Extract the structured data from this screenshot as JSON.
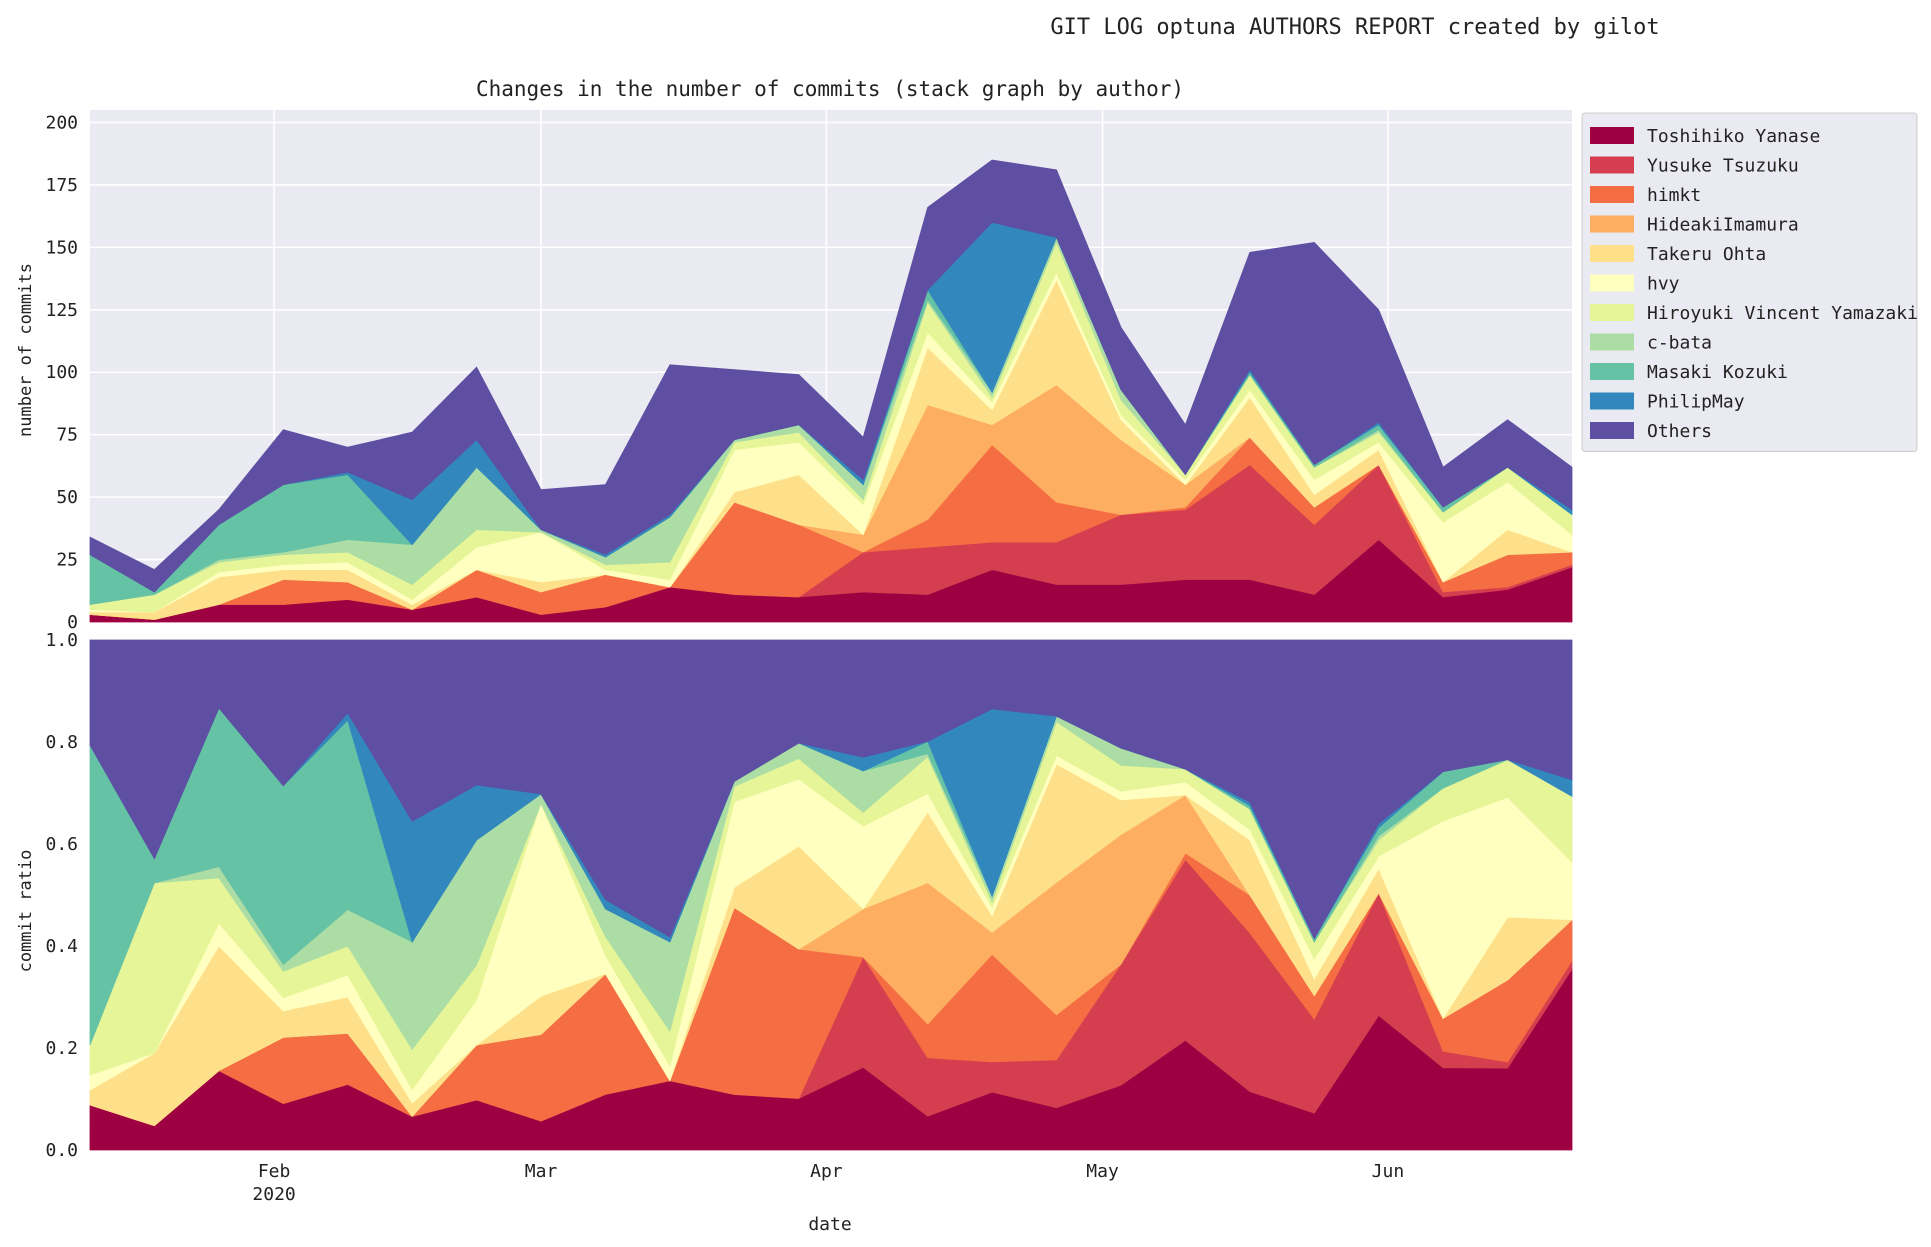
{
  "report_title": "GIT LOG optuna AUTHORS REPORT created by gilot",
  "chart_data": [
    {
      "type": "area",
      "stacked": true,
      "title": "Changes in the number of commits (stack graph by author)",
      "xlabel": "",
      "ylabel": "number of commits",
      "ylim": [
        0,
        205
      ],
      "yticks": [
        0,
        25,
        50,
        75,
        100,
        125,
        150,
        175,
        200
      ],
      "grid": true,
      "legend_position": "outside-right",
      "x": [
        "2020-01-12",
        "2020-01-19",
        "2020-01-26",
        "2020-02-02",
        "2020-02-09",
        "2020-02-16",
        "2020-02-23",
        "2020-03-01",
        "2020-03-08",
        "2020-03-15",
        "2020-03-22",
        "2020-03-29",
        "2020-04-05",
        "2020-04-12",
        "2020-04-19",
        "2020-04-26",
        "2020-05-03",
        "2020-05-10",
        "2020-05-17",
        "2020-05-24",
        "2020-05-31",
        "2020-06-07",
        "2020-06-14",
        "2020-06-21"
      ],
      "series": [
        {
          "name": "Toshihiko Yanase",
          "color": "#9e0142",
          "values": [
            3,
            1,
            7,
            7,
            9,
            5,
            10,
            3,
            6,
            14,
            11,
            10,
            12,
            11,
            21,
            15,
            15,
            17,
            17,
            11,
            33,
            10,
            13,
            22
          ]
        },
        {
          "name": "Yusuke Tsuzuku",
          "color": "#d53e4f",
          "values": [
            0,
            0,
            0,
            0,
            0,
            0,
            0,
            0,
            0,
            0,
            0,
            0,
            16,
            19,
            11,
            17,
            28,
            28,
            46,
            28,
            30,
            2,
            1,
            1
          ]
        },
        {
          "name": "himkt",
          "color": "#f46d43",
          "values": [
            0,
            0,
            0,
            10,
            7,
            0,
            11,
            9,
            13,
            0,
            37,
            29,
            0,
            11,
            39,
            16,
            0,
            1,
            11,
            7,
            0,
            4,
            13,
            5
          ]
        },
        {
          "name": "HideakiImamura",
          "color": "#fdae61",
          "values": [
            0,
            0,
            0,
            0,
            0,
            0,
            0,
            0,
            0,
            0,
            0,
            0,
            7,
            46,
            8,
            47,
            30,
            9,
            0,
            0,
            0,
            0,
            0,
            0
          ]
        },
        {
          "name": "Takeru Ohta",
          "color": "#fee08b",
          "values": [
            1,
            3,
            11,
            4,
            5,
            2,
            0,
            4,
            0,
            0,
            4,
            20,
            0,
            23,
            6,
            42,
            8,
            0,
            16,
            5,
            6,
            0,
            10,
            0
          ]
        },
        {
          "name": "hvy",
          "color": "#ffffbf",
          "values": [
            1,
            0,
            2,
            2,
            3,
            2,
            9,
            20,
            2,
            3,
            17,
            13,
            12,
            6,
            3,
            3,
            2,
            2,
            3,
            6,
            3,
            24,
            19,
            7
          ]
        },
        {
          "name": "Hiroyuki Vincent Yamazaki",
          "color": "#e6f598",
          "values": [
            2,
            7,
            4,
            4,
            4,
            6,
            7,
            0,
            2,
            7,
            3,
            4,
            2,
            12,
            2,
            12,
            6,
            2,
            6,
            5,
            4,
            4,
            6,
            8
          ]
        },
        {
          "name": "c-bata",
          "color": "#abdda4",
          "values": [
            0,
            0,
            1,
            1,
            5,
            16,
            25,
            1,
            3,
            18,
            1,
            3,
            6,
            1,
            2,
            2,
            4,
            0,
            0,
            0,
            1,
            0,
            0,
            0
          ]
        },
        {
          "name": "Masaki Kozuki",
          "color": "#66c2a5",
          "values": [
            20,
            1,
            14,
            27,
            26,
            0,
            0,
            0,
            0,
            0,
            0,
            0,
            0,
            4,
            0,
            0,
            0,
            0,
            1,
            1,
            2,
            2,
            0,
            0
          ]
        },
        {
          "name": "PhilipMay",
          "color": "#3288bd",
          "values": [
            0,
            0,
            0,
            0,
            1,
            18,
            11,
            0,
            1,
            1,
            0,
            0,
            2,
            0,
            68,
            0,
            0,
            0,
            1,
            0,
            1,
            0,
            0,
            2
          ]
        },
        {
          "name": "Others",
          "color": "#5e4fa2",
          "values": [
            7,
            9,
            6,
            22,
            10,
            27,
            29,
            16,
            28,
            60,
            28,
            20,
            17,
            33,
            25,
            27,
            25,
            20,
            47,
            89,
            45,
            16,
            19,
            17
          ]
        }
      ]
    },
    {
      "type": "area",
      "stacked": true,
      "normalized": true,
      "title": "",
      "xlabel": "date",
      "ylabel": "commit ratio",
      "ylim": [
        0.0,
        1.0
      ],
      "yticks": [
        "0.0",
        "0.2",
        "0.4",
        "0.6",
        "0.8",
        "1.0"
      ],
      "xticks": [
        {
          "date": "2020-02-01",
          "label": "Feb",
          "sublabel": "2020"
        },
        {
          "date": "2020-03-01",
          "label": "Mar",
          "sublabel": ""
        },
        {
          "date": "2020-04-01",
          "label": "Apr",
          "sublabel": ""
        },
        {
          "date": "2020-05-01",
          "label": "May",
          "sublabel": ""
        },
        {
          "date": "2020-06-01",
          "label": "Jun",
          "sublabel": ""
        }
      ],
      "note": "same series as above, each expressed as share of the period total"
    }
  ]
}
